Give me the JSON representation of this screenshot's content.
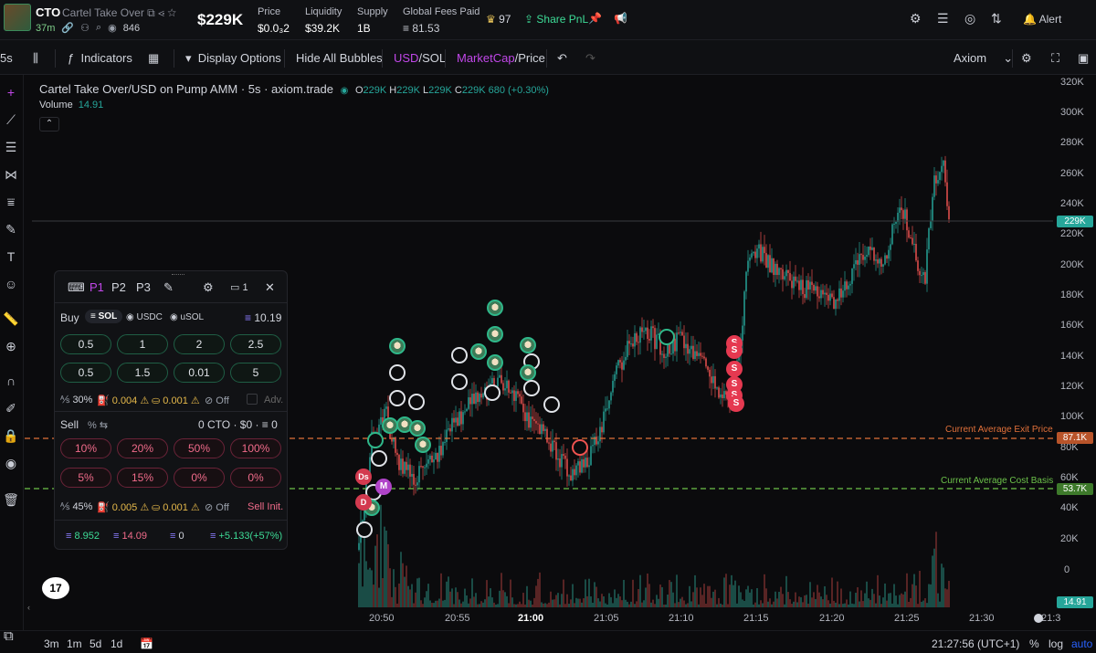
{
  "token": {
    "symbol": "CTO",
    "name": "Cartel Take Over",
    "age": "37m",
    "viewers": "846",
    "price_big": "$229K"
  },
  "stats": [
    {
      "label": "Price",
      "value": "$0.0₃2"
    },
    {
      "label": "Liquidity",
      "value": "$39.2K"
    },
    {
      "label": "Supply",
      "value": "1B"
    },
    {
      "label": "Global Fees Paid",
      "value": "≡ 81.53"
    }
  ],
  "top_actions": {
    "crown_count": "97",
    "share": "Share PnL",
    "alert": "Alert"
  },
  "toolbar": {
    "interval": "5s",
    "indicators": "Indicators",
    "display_options": "Display Options",
    "hide_bubbles": "Hide All Bubbles",
    "usd": "USD",
    "sol": "SOL",
    "marketcap": "MarketCap",
    "price": "Price",
    "provider": "Axiom"
  },
  "legend": {
    "title": "Cartel Take Over/USD on Pump AMM · 5s · axiom.trade",
    "o_lbl": "O",
    "o": "229K",
    "h_lbl": "H",
    "h": "229K",
    "l_lbl": "L",
    "l": "229K",
    "c_lbl": "C",
    "c": "229K 680 (+0.30%)",
    "volume_lbl": "Volume",
    "volume": "14.91"
  },
  "y_axis": {
    "ticks": [
      "320K",
      "300K",
      "280K",
      "260K",
      "240K",
      "220K",
      "200K",
      "180K",
      "160K",
      "140K",
      "120K",
      "100K",
      "80K",
      "60K",
      "40K",
      "20K",
      "0"
    ],
    "current": "229K",
    "exit": "87.1K",
    "basis": "53.7K",
    "vol": "14.91"
  },
  "lines": {
    "exit_label": "Current Average Exit Price",
    "basis_label": "Current Average Cost Basis"
  },
  "x_axis": {
    "ticks": [
      "20:50",
      "20:55",
      "21:00",
      "21:05",
      "21:10",
      "21:15",
      "21:20",
      "21:25",
      "21:30",
      "21:3"
    ]
  },
  "bottom": {
    "ranges": [
      "3m",
      "1m",
      "5d",
      "1d"
    ],
    "time": "21:27:56 (UTC+1)",
    "pct": "%",
    "log": "log",
    "auto": "auto"
  },
  "panel": {
    "tabs": [
      "P1",
      "P2",
      "P3"
    ],
    "wallets": "1",
    "buy_label": "Buy",
    "currencies": [
      "SOL",
      "USDC",
      "uSOL"
    ],
    "buy_balance": "10.19",
    "buy_amounts": [
      "0.5",
      "1",
      "2",
      "2.5",
      "0.5",
      "1.5",
      "0.01",
      "5"
    ],
    "buy_settings": {
      "slip": "30%",
      "prio": "0.004",
      "bribe": "0.001",
      "mev": "Off",
      "adv": "Adv."
    },
    "sell_label": "Sell",
    "sell_pct": "%",
    "sell_holdings": "0 CTO · $0 · ≡ 0",
    "sell_amounts": [
      "10%",
      "20%",
      "50%",
      "100%",
      "5%",
      "15%",
      "0%",
      "0%"
    ],
    "sell_settings": {
      "slip": "45%",
      "prio": "0.005",
      "bribe": "0.001",
      "mev": "Off",
      "init": "Sell Init."
    },
    "footer": {
      "bought": "8.952",
      "sold": "14.09",
      "holding": "0",
      "pnl": "+5.133(+57%)"
    }
  },
  "colors": {
    "up": "#26a69a",
    "down": "#ef5350",
    "accent": "#c147e9",
    "green": "#3ddc97"
  }
}
